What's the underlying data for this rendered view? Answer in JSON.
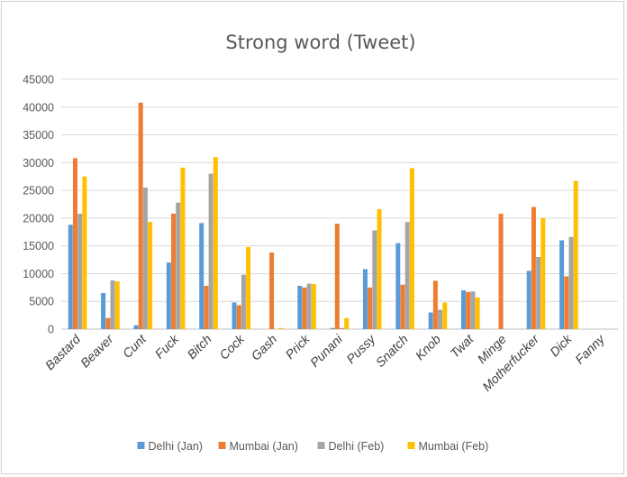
{
  "chart_data": {
    "type": "bar",
    "title": "Strong word (Tweet)",
    "xlabel": "",
    "ylabel": "",
    "ylim": [
      0,
      45000
    ],
    "yticks": [
      0,
      5000,
      10000,
      15000,
      20000,
      25000,
      30000,
      35000,
      40000,
      45000
    ],
    "grid": true,
    "legend_position": "bottom",
    "categories": [
      "Bastard",
      "Beaver",
      "Cunt",
      "Fuck",
      "Bitch",
      "Cock",
      "Gash",
      "Prick",
      "Punani",
      "Pussy",
      "Snatch",
      "Knob",
      "Twat",
      "Minge",
      "Motherfucker",
      "Dick",
      "Fanny"
    ],
    "series": [
      {
        "name": "Delhi (Jan)",
        "color": "#5b9bd5",
        "values": [
          18800,
          6500,
          700,
          12000,
          19100,
          4800,
          0,
          7800,
          200,
          10800,
          15500,
          3000,
          7000,
          0,
          10500,
          16000,
          0
        ]
      },
      {
        "name": "Mumbai (Jan)",
        "color": "#ed7d31",
        "values": [
          30800,
          2000,
          40800,
          20800,
          7800,
          4300,
          13800,
          7500,
          19000,
          7500,
          8000,
          8700,
          6700,
          20800,
          22000,
          9500,
          0
        ]
      },
      {
        "name": "Delhi (Feb)",
        "color": "#a5a5a5",
        "values": [
          20800,
          8800,
          25500,
          22800,
          28000,
          9800,
          0,
          8200,
          200,
          17800,
          19300,
          3500,
          6800,
          0,
          13000,
          16600,
          0
        ]
      },
      {
        "name": "Mumbai (Feb)",
        "color": "#ffc000",
        "values": [
          27500,
          8600,
          19300,
          29100,
          31000,
          14800,
          200,
          8100,
          2000,
          21600,
          29000,
          4800,
          5700,
          0,
          20000,
          26700,
          0
        ]
      }
    ]
  }
}
